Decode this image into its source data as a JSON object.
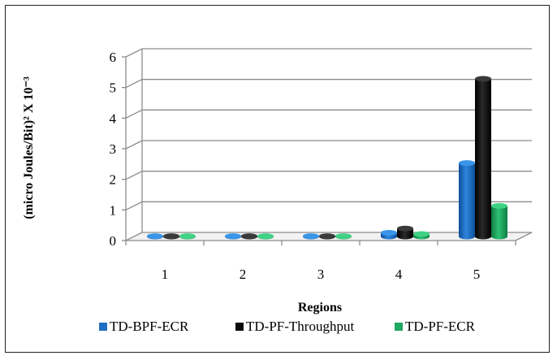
{
  "chart_data": {
    "type": "bar",
    "categories": [
      "1",
      "2",
      "3",
      "4",
      "5"
    ],
    "series": [
      {
        "name": "TD-BPF-ECR",
        "color": "#1f6fc0",
        "values": [
          0.01,
          0.01,
          0.01,
          0.12,
          2.4
        ]
      },
      {
        "name": "TD-PF-Throughput",
        "color": "#0a0a0a",
        "values": [
          0.01,
          0.01,
          0.01,
          0.26,
          5.15
        ]
      },
      {
        "name": "TD-PF-ECR",
        "color": "#1fa860",
        "values": [
          0.01,
          0.01,
          0.01,
          0.08,
          1.0
        ]
      }
    ],
    "xlabel": "Regions",
    "ylabel": "(micro Joules/Bit)² X 10⁻³",
    "ylim": [
      0,
      6
    ],
    "yticks": [
      "0",
      "1",
      "2",
      "3",
      "4",
      "5",
      "6"
    ],
    "grid": true,
    "legend_position": "bottom"
  }
}
